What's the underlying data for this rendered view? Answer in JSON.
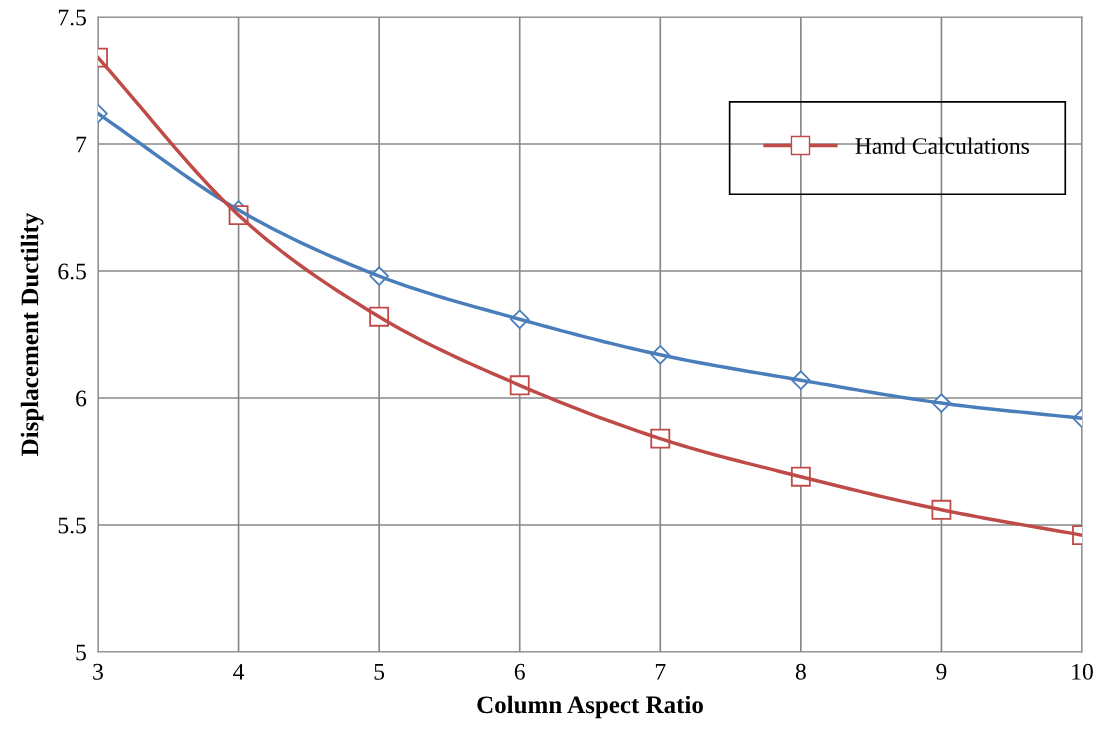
{
  "chart_data": {
    "type": "line",
    "xlabel": "Column Aspect Ratio",
    "ylabel": "Displacement Ductility",
    "x": [
      3,
      4,
      5,
      6,
      7,
      8,
      9,
      10
    ],
    "series": [
      {
        "color": "#4a7ebb",
        "marker": "diamond",
        "values": [
          7.12,
          6.74,
          6.48,
          6.31,
          6.17,
          6.07,
          5.98,
          5.92
        ]
      },
      {
        "name": "Hand Calculations",
        "color": "#be4b48",
        "marker": "square",
        "values": [
          7.34,
          6.72,
          6.32,
          6.05,
          5.84,
          5.69,
          5.56,
          5.46
        ]
      }
    ],
    "xlim": [
      3,
      10
    ],
    "xticks": [
      3,
      4,
      5,
      6,
      7,
      8,
      9,
      10
    ],
    "ylim": [
      5,
      7.5
    ],
    "yticks": [
      5,
      5.5,
      6,
      6.5,
      7,
      7.5
    ],
    "grid": true,
    "legend": "top right",
    "line_style": "solid"
  }
}
